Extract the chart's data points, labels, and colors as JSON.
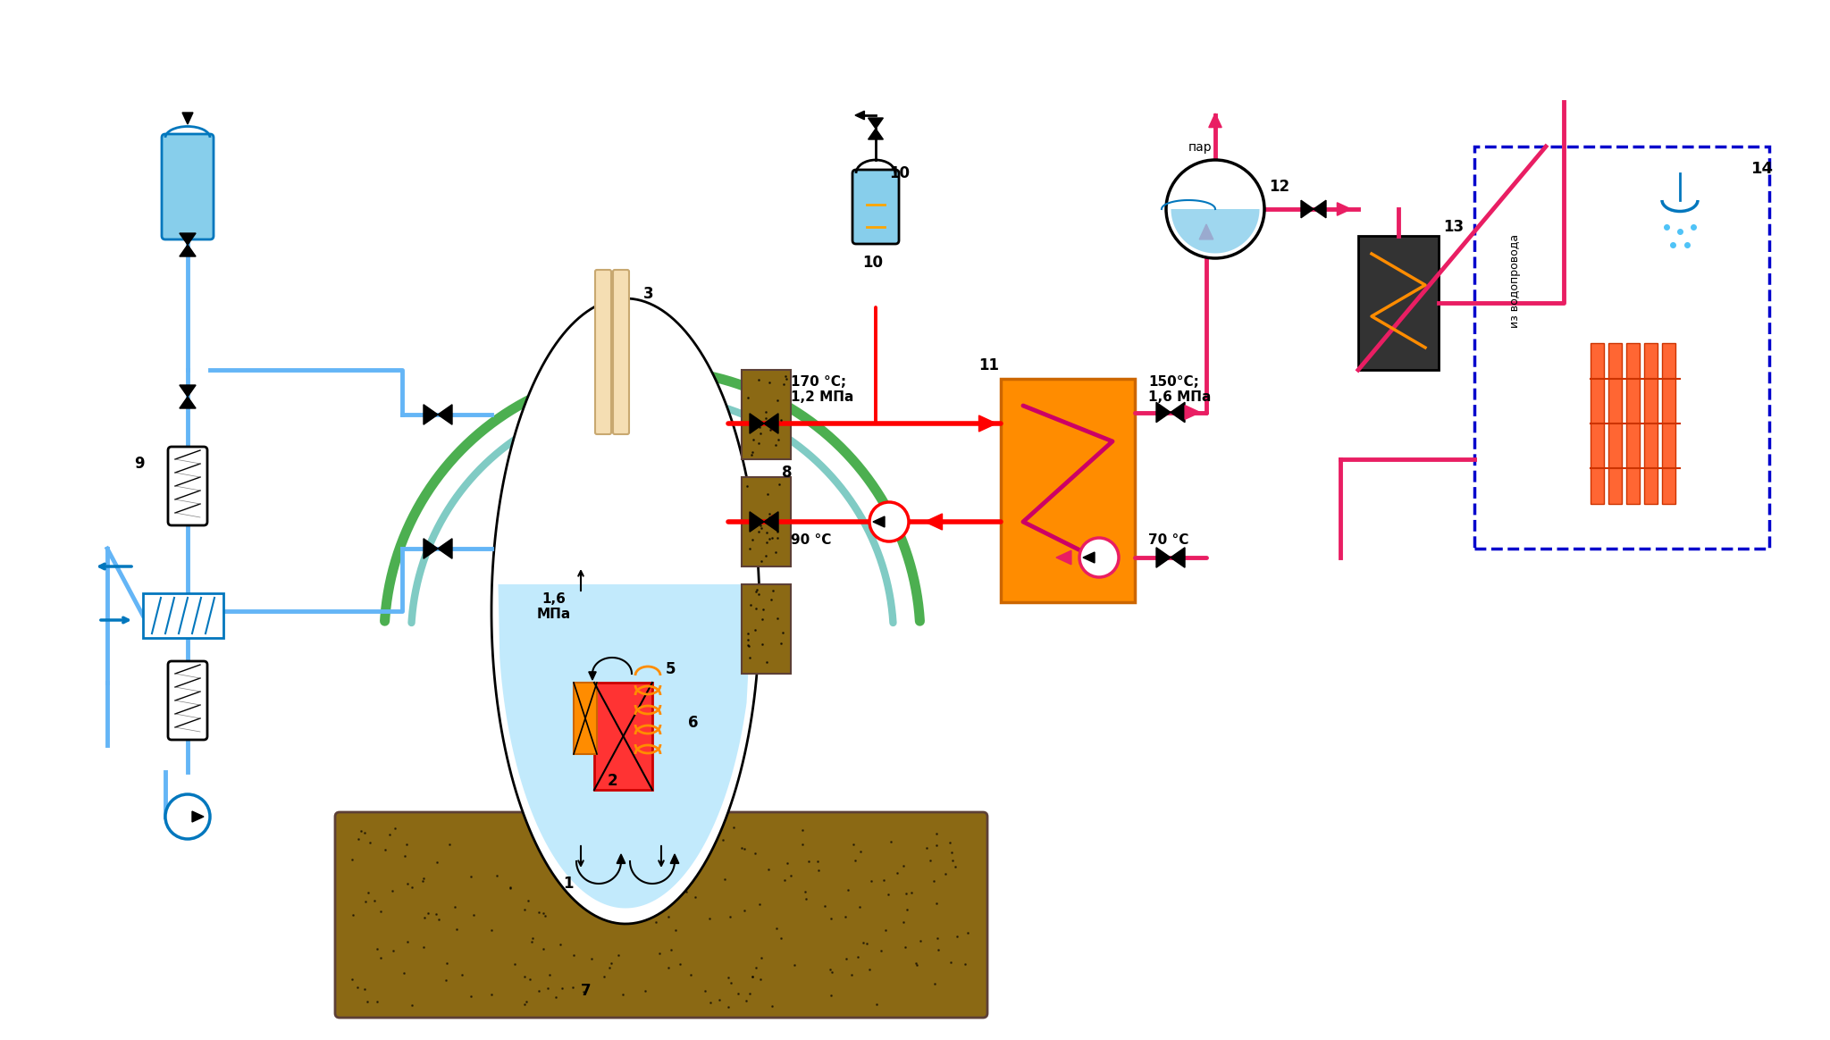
{
  "bg_color": "#ffffff",
  "title": "",
  "fig_width": 20.48,
  "fig_height": 11.64,
  "colors": {
    "blue_light": "#87CEEB",
    "blue_medium": "#4FC3F7",
    "blue_dark": "#0277BD",
    "blue_pipe": "#64B5F6",
    "blue_fill": "#B3E5FC",
    "red": "#FF0000",
    "red_dark": "#CC0000",
    "pink": "#E91E63",
    "orange": "#FF8C00",
    "orange_light": "#FFB347",
    "green_light": "#80CBC4",
    "green_teal": "#26A69A",
    "brown": "#8B6914",
    "brown_light": "#A0785A",
    "yellow_light": "#F5DEB3",
    "white": "#FFFFFF",
    "black": "#000000",
    "gray": "#808080",
    "teal": "#00BCD4",
    "cyan_fill": "#B2EBF2"
  },
  "labels": {
    "pressure_reactor": "1,6\nМПа",
    "temp1": "170 °С;\n1,2 МПа",
    "temp2": "90 °С",
    "temp3": "150°С;\n1,6 МПа",
    "temp4": "70 °С",
    "par": "пар",
    "iz_vodoprovoda": "из водопровода",
    "num1": "1",
    "num2": "2",
    "num3": "3",
    "num5": "5",
    "num6": "6",
    "num7": "7",
    "num8": "8",
    "num9": "9",
    "num10": "10",
    "num11": "11",
    "num12": "12",
    "num13": "13",
    "num14": "14"
  }
}
